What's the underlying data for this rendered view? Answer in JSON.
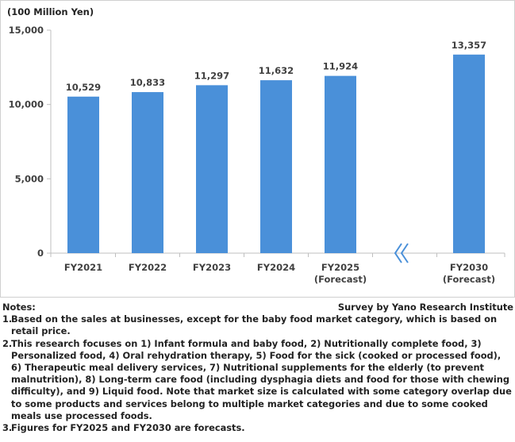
{
  "chart_data": {
    "type": "bar",
    "unit_label": "(100 Million Yen)",
    "categories": [
      "FY2021",
      "FY2022",
      "FY2023",
      "FY2024",
      "FY2025",
      "FY2030"
    ],
    "category_sublabels": [
      "",
      "",
      "",
      "",
      "(Forecast)",
      "(Forecast)"
    ],
    "values": [
      10529,
      10833,
      11297,
      11632,
      11924,
      13357
    ],
    "value_labels": [
      "10,529",
      "10,833",
      "11,297",
      "11,632",
      "11,924",
      "13,357"
    ],
    "ylim": [
      0,
      15000
    ],
    "yticks": [
      0,
      5000,
      10000,
      15000
    ],
    "ytick_labels": [
      "0",
      "5,000",
      "10,000",
      "15,000"
    ],
    "axis_break_between": [
      "FY2025",
      "FY2030"
    ],
    "bar_color": "#4a90d9",
    "grid": false,
    "legend": "none"
  },
  "notes": {
    "heading": "Notes:",
    "source": "Survey by Yano Research Institute",
    "items": [
      {
        "num": "1.",
        "text": "Based on the sales at businesses, except for the baby food market category, which is based on retail price."
      },
      {
        "num": "2.",
        "text": "This research focuses on 1) Infant formula and baby food, 2) Nutritionally complete food, 3) Personalized food, 4) Oral rehydration therapy, 5) Food for the sick (cooked or processed food), 6) Therapeutic meal delivery services, 7) Nutritional supplements for the elderly (to prevent malnutrition), 8) Long-term care food (including dysphagia diets and food for those with chewing difficulty), and 9) Liquid food. Note that market size is calculated with some category overlap due to some products and services belong to multiple market categories and due to some cooked meals use processed foods."
      },
      {
        "num": "3.",
        "text": "Figures for FY2025 and FY2030 are forecasts."
      }
    ]
  }
}
